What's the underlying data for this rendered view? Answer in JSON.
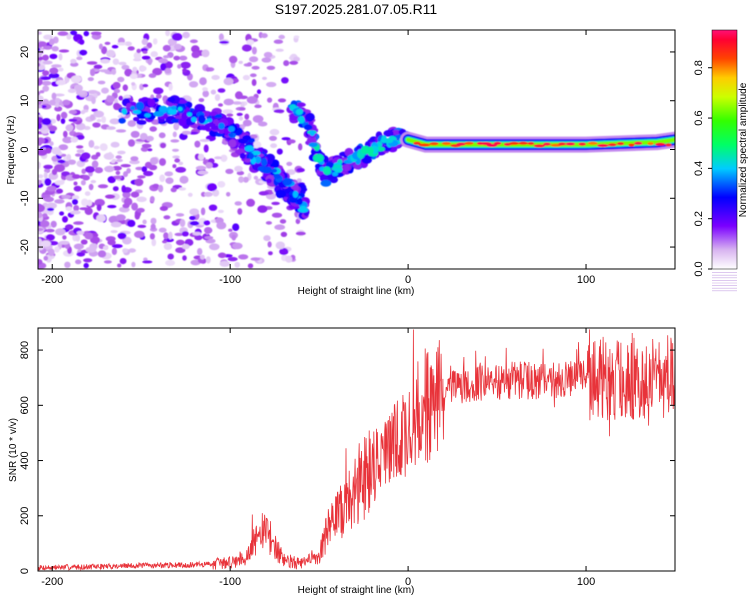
{
  "title": "S197.2025.281.07.05.R11",
  "colors": {
    "background": "#ffffff",
    "frame": "#000000",
    "snr_line": "#e8333a",
    "spectrogram_bg": "#ffffff"
  },
  "chart_data": [
    {
      "type": "heatmap",
      "name": "spectrogram",
      "xlabel": "Height of straight line (km)",
      "ylabel": "Frequency (Hz)",
      "xlim": [
        -208,
        150
      ],
      "ylim": [
        -24.5,
        24.5
      ],
      "xticks": [
        -200,
        -100,
        0,
        100
      ],
      "yticks": [
        -20,
        -10,
        0,
        10,
        20
      ],
      "colorbar": {
        "label": "Normalized spectral amplitude",
        "range": [
          0.0,
          0.95
        ],
        "ticks": [
          "0.0",
          "0.2",
          "0.4",
          "0.6",
          "0.8"
        ],
        "tick_values": [
          0.0,
          0.2,
          0.4,
          0.6,
          0.8
        ],
        "colormap": "rainbow (white-violet-blue-cyan-green-yellow-red-magenta)"
      },
      "features": [
        {
          "name": "scatter_noise",
          "x_range": [
            -208,
            -60
          ],
          "freq_range": [
            -24,
            24
          ],
          "amplitude": 0.1
        },
        {
          "name": "descending_branch",
          "points": [
            [
              -160,
              8
            ],
            [
              -130,
              8
            ],
            [
              -110,
              6
            ],
            [
              -95,
              2
            ],
            [
              -85,
              -2
            ],
            [
              -75,
              -5
            ],
            [
              -65,
              -9
            ],
            [
              -57,
              -12
            ]
          ],
          "amplitude": 0.3
        },
        {
          "name": "second_branch",
          "points": [
            [
              -65,
              9
            ],
            [
              -55,
              4
            ],
            [
              -50,
              -2
            ],
            [
              -45,
              -5
            ],
            [
              -38,
              -3
            ],
            [
              -30,
              -2
            ],
            [
              -20,
              0
            ],
            [
              -10,
              2
            ],
            [
              0,
              2
            ]
          ],
          "amplitude": 0.35
        },
        {
          "name": "carrier",
          "points": [
            [
              0,
              2
            ],
            [
              10,
              1
            ],
            [
              30,
              1
            ],
            [
              60,
              1
            ],
            [
              100,
              1
            ],
            [
              140,
              1.5
            ],
            [
              150,
              2
            ]
          ],
          "amplitude": 0.85
        }
      ]
    },
    {
      "type": "line",
      "name": "snr",
      "xlabel": "Height of straight line (km)",
      "ylabel": "SNR (10 * v/v)",
      "xlim": [
        -208,
        150
      ],
      "ylim": [
        0,
        880
      ],
      "xticks": [
        -200,
        -100,
        0,
        100
      ],
      "yticks": [
        0,
        200,
        400,
        600,
        800
      ],
      "envelope": {
        "x": [
          -208,
          -180,
          -150,
          -120,
          -100,
          -90,
          -85,
          -80,
          -75,
          -70,
          -60,
          -50,
          -45,
          -40,
          -35,
          -30,
          -25,
          -20,
          -15,
          -10,
          -5,
          0,
          5,
          10,
          15,
          20,
          25,
          30,
          40,
          60,
          80,
          100,
          120,
          140,
          150
        ],
        "y": [
          12,
          15,
          20,
          22,
          30,
          60,
          120,
          150,
          90,
          40,
          25,
          60,
          150,
          200,
          230,
          280,
          350,
          380,
          420,
          440,
          480,
          500,
          560,
          600,
          620,
          640,
          660,
          670,
          680,
          690,
          690,
          700,
          690,
          700,
          700
        ]
      }
    }
  ]
}
